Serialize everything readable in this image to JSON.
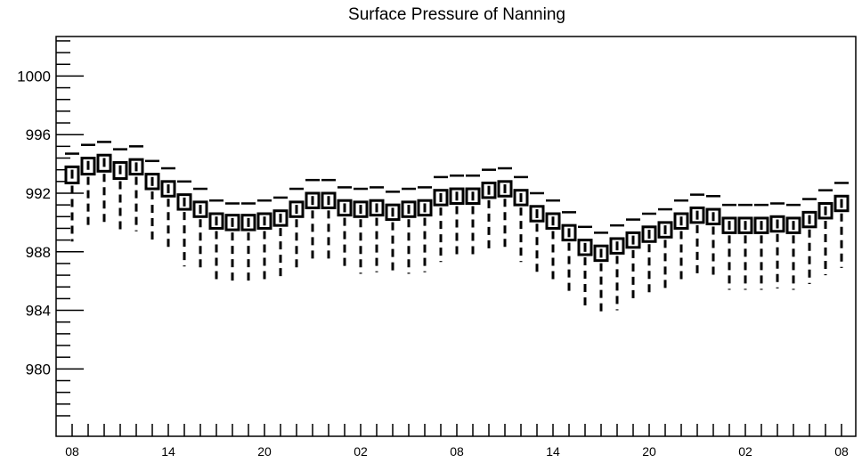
{
  "chart_data": {
    "type": "box",
    "title": "Surface Pressure of Nanning",
    "xlabel": "",
    "ylabel": "",
    "ylim": [
      975.4,
      1002.7
    ],
    "y_ticks": [
      980,
      984,
      988,
      992,
      996,
      1000
    ],
    "x_tick_labels": [
      "08",
      "14",
      "20",
      "02",
      "08",
      "14",
      "20",
      "02",
      "08"
    ],
    "x_tick_label_index": [
      0,
      6,
      12,
      18,
      24,
      30,
      36,
      42,
      48
    ],
    "hours": [
      "08",
      "09",
      "10",
      "11",
      "12",
      "13",
      "14",
      "15",
      "16",
      "17",
      "18",
      "19",
      "20",
      "21",
      "22",
      "23",
      "00",
      "01",
      "02",
      "03",
      "04",
      "05",
      "06",
      "07",
      "08",
      "09",
      "10",
      "11",
      "12",
      "13",
      "14",
      "15",
      "16",
      "17",
      "18",
      "19",
      "20",
      "21",
      "22",
      "23",
      "00",
      "01",
      "02",
      "03",
      "04",
      "05",
      "06",
      "07",
      "08"
    ],
    "grid": false,
    "series": [
      {
        "median": [
          993.3,
          993.9,
          994.1,
          993.6,
          993.8,
          992.8,
          992.3,
          991.4,
          990.9,
          990.1,
          990.0,
          990.0,
          990.1,
          990.3,
          990.9,
          991.5,
          991.5,
          991.0,
          990.9,
          991.0,
          990.7,
          990.9,
          991.0,
          991.7,
          991.8,
          991.8,
          992.2,
          992.3,
          991.7,
          990.6,
          990.1,
          989.3,
          988.3,
          987.9,
          988.4,
          988.8,
          989.2,
          989.5,
          990.1,
          990.5,
          990.4,
          989.8,
          989.8,
          989.8,
          989.9,
          989.8,
          990.2,
          990.8,
          991.3
        ],
        "q1": [
          992.7,
          993.3,
          993.5,
          993.0,
          993.3,
          992.3,
          991.8,
          990.9,
          990.4,
          989.6,
          989.5,
          989.5,
          989.6,
          989.8,
          990.4,
          991.0,
          991.0,
          990.5,
          990.4,
          990.5,
          990.2,
          990.4,
          990.5,
          991.2,
          991.3,
          991.3,
          991.7,
          991.8,
          991.2,
          990.1,
          989.6,
          988.8,
          987.8,
          987.4,
          987.9,
          988.3,
          988.7,
          989.0,
          989.6,
          990.0,
          989.9,
          989.3,
          989.3,
          989.3,
          989.4,
          989.3,
          989.7,
          990.3,
          990.8
        ],
        "q3": [
          993.8,
          994.4,
          994.6,
          994.1,
          994.3,
          993.3,
          992.8,
          991.9,
          991.4,
          990.6,
          990.5,
          990.5,
          990.6,
          990.8,
          991.4,
          992.0,
          992.0,
          991.5,
          991.4,
          991.5,
          991.2,
          991.4,
          991.5,
          992.2,
          992.3,
          992.3,
          992.7,
          992.8,
          992.2,
          991.1,
          990.6,
          989.8,
          988.8,
          988.4,
          988.9,
          989.3,
          989.7,
          990.0,
          990.6,
          991.0,
          990.9,
          990.3,
          990.3,
          990.3,
          990.4,
          990.3,
          990.7,
          991.3,
          991.8
        ],
        "whisker_low": [
          988.7,
          989.5,
          989.7,
          989.2,
          989.4,
          988.5,
          988.0,
          987.0,
          986.6,
          985.9,
          985.7,
          985.7,
          985.8,
          986.0,
          986.6,
          987.2,
          987.2,
          986.7,
          986.5,
          986.6,
          986.4,
          986.5,
          986.6,
          987.3,
          987.5,
          987.5,
          987.9,
          988.0,
          987.3,
          986.4,
          985.8,
          985.0,
          984.0,
          983.7,
          984.0,
          984.5,
          984.9,
          985.2,
          985.8,
          986.2,
          986.1,
          985.4,
          985.4,
          985.4,
          985.5,
          985.4,
          985.8,
          986.4,
          986.9
        ],
        "whisker_high": [
          994.7,
          995.3,
          995.5,
          995.0,
          995.2,
          994.2,
          993.7,
          992.8,
          992.3,
          991.5,
          991.3,
          991.3,
          991.5,
          991.7,
          992.3,
          992.9,
          992.9,
          992.4,
          992.3,
          992.4,
          992.1,
          992.3,
          992.4,
          993.1,
          993.2,
          993.2,
          993.6,
          993.7,
          993.1,
          992.0,
          991.5,
          990.7,
          989.7,
          989.3,
          989.8,
          990.2,
          990.6,
          990.9,
          991.5,
          991.9,
          991.8,
          991.2,
          991.2,
          991.2,
          991.3,
          991.2,
          991.6,
          992.2,
          992.7
        ]
      }
    ]
  }
}
